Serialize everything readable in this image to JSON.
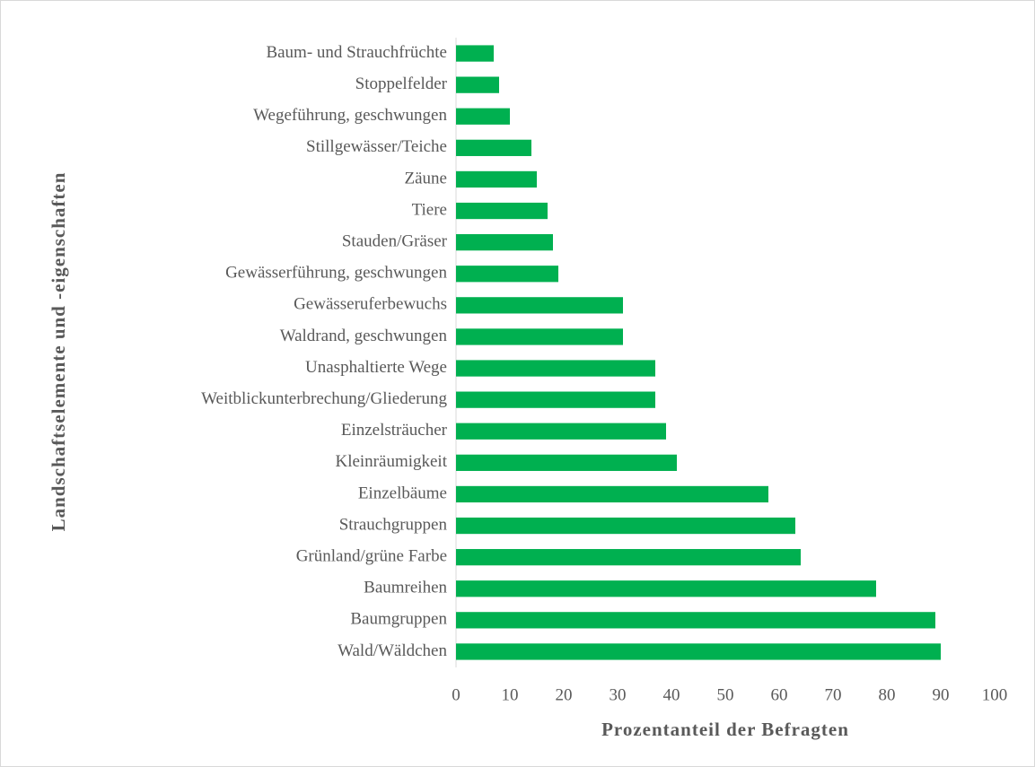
{
  "chart_data": {
    "type": "bar",
    "orientation": "horizontal",
    "x_label": "Prozentanteil der Befragten",
    "y_label": "Landschaftselemente und -eigenschaften",
    "categories": [
      "Baum- und Strauchfrüchte",
      "Stoppelfelder",
      "Wegeführung, geschwungen",
      "Stillgewässer/Teiche",
      "Zäune",
      "Tiere",
      "Stauden/Gräser",
      "Gewässerführung, geschwungen",
      "Gewässeruferbewuchs",
      "Waldrand, geschwungen",
      "Unasphaltierte Wege",
      "Weitblickunterbrechung/Gliederung",
      "Einzelsträucher",
      "Kleinräumigkeit",
      "Einzelbäume",
      "Strauchgruppen",
      "Grünland/grüne Farbe",
      "Baumreihen",
      "Baumgruppen",
      "Wald/Wäldchen"
    ],
    "values": [
      7,
      8,
      10,
      14,
      15,
      17,
      18,
      19,
      31,
      31,
      37,
      37,
      39,
      41,
      58,
      63,
      64,
      78,
      89,
      90
    ],
    "color": "#00b050",
    "xlim": [
      0,
      100
    ],
    "xticks": [
      0,
      10,
      20,
      30,
      40,
      50,
      60,
      70,
      80,
      90,
      100
    ],
    "grid": false
  }
}
